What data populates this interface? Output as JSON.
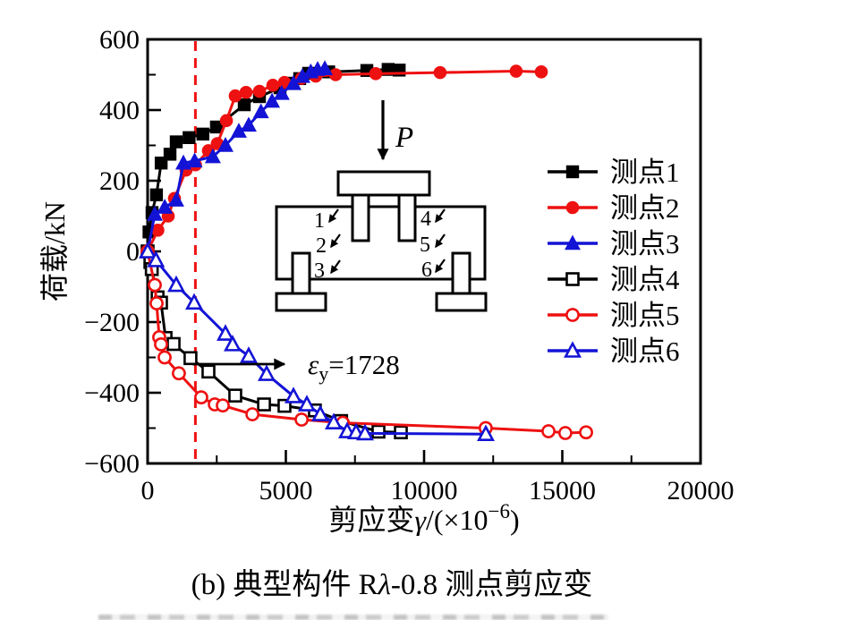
{
  "figure": {
    "caption": {
      "prefix": "(b)  典型构件 R",
      "lambda": "λ",
      "suffix": "-0.8 测点剪应变"
    }
  },
  "chart_data": {
    "type": "line",
    "title": "",
    "ylabel": "荷载/kN",
    "xlabel_parts": {
      "base": "剪应变",
      "gamma": "γ",
      "mid": "/(×10",
      "sup": "−6",
      "close": ")"
    },
    "xlim": [
      0,
      20000
    ],
    "ylim": [
      -600,
      600
    ],
    "x_ticks": [
      0,
      5000,
      10000,
      15000,
      20000
    ],
    "x_tick_labels": [
      "0",
      "5000",
      "10000",
      "15000",
      "20000"
    ],
    "x_minor_step": 2500,
    "y_ticks": [
      600,
      400,
      200,
      0,
      -200,
      -400,
      -600
    ],
    "y_tick_labels": [
      "600",
      "400",
      "200",
      "0",
      "−200",
      "−400",
      "−600"
    ],
    "y_minor_step": 100,
    "grid": false,
    "legend_position": "inside-upper-right",
    "reference_line": {
      "x": 1728,
      "color": "#ee1111",
      "style": "dashed"
    },
    "annotation": {
      "epsilon": "ε",
      "sub": "y",
      "eq": "=1728"
    },
    "series": [
      {
        "label": "测点1",
        "color": "#000000",
        "marker": "square",
        "fill": "filled",
        "points": [
          [
            0,
            0
          ],
          [
            50,
            55
          ],
          [
            160,
            110
          ],
          [
            320,
            160
          ],
          [
            490,
            250
          ],
          [
            810,
            275
          ],
          [
            1035,
            310
          ],
          [
            1500,
            322
          ],
          [
            2000,
            332
          ],
          [
            2490,
            352
          ],
          [
            3495,
            415
          ],
          [
            4045,
            438
          ],
          [
            4790,
            463
          ],
          [
            5240,
            476
          ],
          [
            5500,
            489
          ],
          [
            5825,
            504
          ],
          [
            6550,
            508
          ],
          [
            7930,
            512
          ],
          [
            8700,
            515
          ],
          [
            9100,
            513
          ]
        ]
      },
      {
        "label": "测点2",
        "color": "#ee1111",
        "marker": "circle",
        "fill": "filled",
        "points": [
          [
            0,
            0
          ],
          [
            370,
            60
          ],
          [
            745,
            100
          ],
          [
            970,
            150
          ],
          [
            1390,
            230
          ],
          [
            1730,
            245
          ],
          [
            2200,
            285
          ],
          [
            2520,
            305
          ],
          [
            2850,
            370
          ],
          [
            3170,
            440
          ],
          [
            3560,
            450
          ],
          [
            4045,
            453
          ],
          [
            4530,
            470
          ],
          [
            4950,
            478
          ],
          [
            5570,
            490
          ],
          [
            6080,
            496
          ],
          [
            6800,
            500
          ],
          [
            8250,
            503
          ],
          [
            10580,
            506
          ],
          [
            13330,
            510
          ],
          [
            14240,
            508
          ]
        ]
      },
      {
        "label": "测点3",
        "color": "#1313d6",
        "marker": "triangle",
        "fill": "filled",
        "points": [
          [
            0,
            0
          ],
          [
            260,
            105
          ],
          [
            620,
            125
          ],
          [
            1035,
            145
          ],
          [
            1294,
            250
          ],
          [
            1700,
            256
          ],
          [
            2360,
            268
          ],
          [
            2815,
            300
          ],
          [
            3300,
            340
          ],
          [
            3656,
            357
          ],
          [
            4100,
            395
          ],
          [
            4500,
            425
          ],
          [
            4850,
            447
          ],
          [
            5275,
            475
          ],
          [
            5600,
            495
          ],
          [
            5900,
            508
          ],
          [
            6150,
            515
          ],
          [
            6410,
            517
          ]
        ]
      },
      {
        "label": "测点4",
        "color": "#000000",
        "marker": "square",
        "fill": "open",
        "points": [
          [
            0,
            0
          ],
          [
            100,
            -30
          ],
          [
            150,
            -50
          ],
          [
            360,
            -130
          ],
          [
            485,
            -145
          ],
          [
            650,
            -245
          ],
          [
            940,
            -262
          ],
          [
            1550,
            -302
          ],
          [
            2200,
            -340
          ],
          [
            3170,
            -408
          ],
          [
            4210,
            -433
          ],
          [
            4950,
            -437
          ],
          [
            6050,
            -450
          ],
          [
            7000,
            -480
          ],
          [
            8350,
            -510
          ],
          [
            9160,
            -512
          ]
        ]
      },
      {
        "label": "测点5",
        "color": "#ee1111",
        "marker": "circle",
        "fill": "open",
        "points": [
          [
            0,
            0
          ],
          [
            260,
            -95
          ],
          [
            325,
            -147
          ],
          [
            420,
            -243
          ],
          [
            485,
            -263
          ],
          [
            615,
            -300
          ],
          [
            1130,
            -345
          ],
          [
            1940,
            -413
          ],
          [
            2430,
            -433
          ],
          [
            2720,
            -436
          ],
          [
            3790,
            -461
          ],
          [
            5570,
            -476
          ],
          [
            7060,
            -485
          ],
          [
            12230,
            -500
          ],
          [
            14500,
            -509
          ],
          [
            15110,
            -514
          ],
          [
            15860,
            -512
          ]
        ]
      },
      {
        "label": "测点6",
        "color": "#1313d6",
        "marker": "triangle",
        "fill": "open",
        "points": [
          [
            0,
            0
          ],
          [
            300,
            -25
          ],
          [
            1035,
            -95
          ],
          [
            1683,
            -145
          ],
          [
            2815,
            -233
          ],
          [
            3074,
            -263
          ],
          [
            3656,
            -296
          ],
          [
            4304,
            -347
          ],
          [
            5275,
            -410
          ],
          [
            5760,
            -433
          ],
          [
            6246,
            -461
          ],
          [
            6731,
            -484
          ],
          [
            7217,
            -509
          ],
          [
            7540,
            -512
          ],
          [
            7864,
            -515
          ],
          [
            12233,
            -517
          ]
        ]
      }
    ]
  },
  "inset": {
    "load_label": "P",
    "point_labels": [
      "1",
      "2",
      "3",
      "4",
      "5",
      "6"
    ]
  }
}
